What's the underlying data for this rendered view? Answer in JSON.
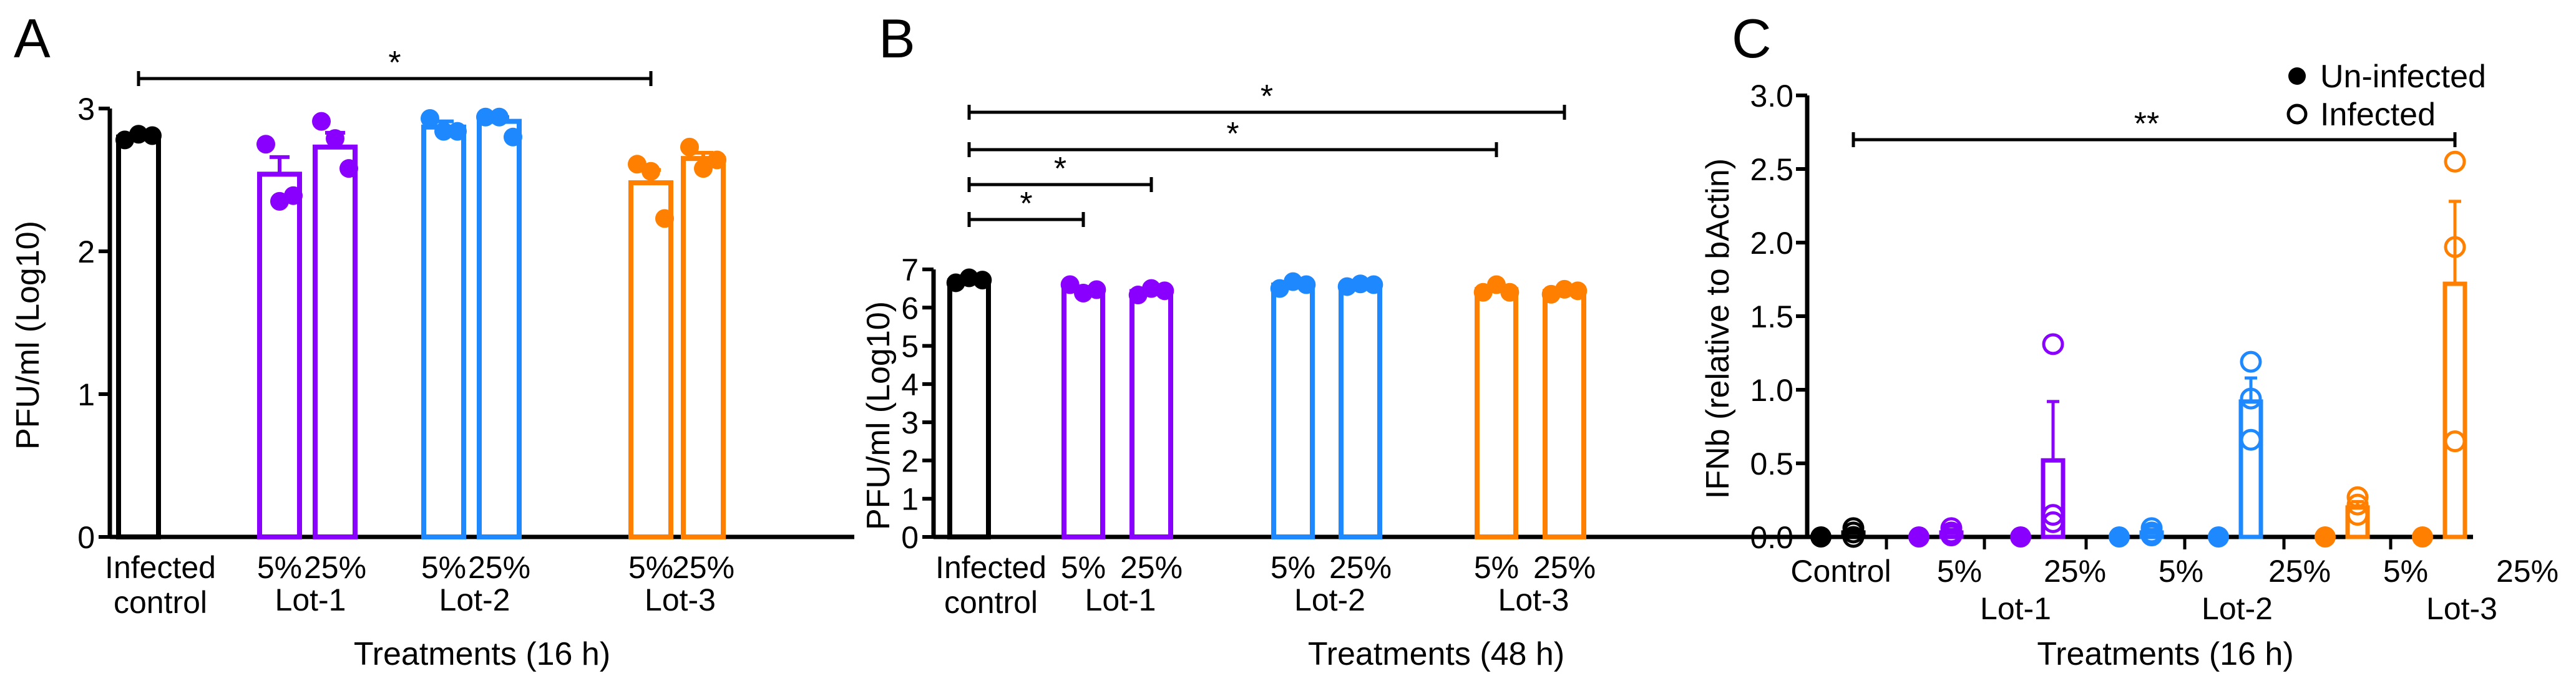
{
  "colors": {
    "control": "#000000",
    "lot1": "#8A00FF",
    "lot2": "#1E88FF",
    "lot3": "#FF8000"
  },
  "chart_data": [
    {
      "panel": "A",
      "type": "bar",
      "title": "",
      "xlabel": "Treatments (16 h)",
      "ylabel": "PFU/ml (Log10)",
      "ylim": [
        0,
        3
      ],
      "yticks": [
        "0",
        "1",
        "2",
        "3"
      ],
      "groups": [
        {
          "label_lines": [
            "Infected",
            "control"
          ],
          "bars": [
            {
              "tick": "",
              "color_key": "control",
              "mean": 2.8,
              "sem": 0.01,
              "points": [
                2.78,
                2.82,
                2.81
              ]
            }
          ]
        },
        {
          "label_lines": [
            "Lot-1"
          ],
          "bars": [
            {
              "tick": "5%",
              "color_key": "lot1",
              "mean": 2.54,
              "sem": 0.12,
              "points": [
                2.75,
                2.35,
                2.39
              ]
            },
            {
              "tick": "25%",
              "color_key": "lot1",
              "mean": 2.73,
              "sem": 0.1,
              "points": [
                2.91,
                2.79,
                2.58
              ]
            }
          ]
        },
        {
          "label_lines": [
            "Lot-2"
          ],
          "bars": [
            {
              "tick": "5%",
              "color_key": "lot2",
              "mean": 2.87,
              "sem": 0.04,
              "points": [
                2.93,
                2.84,
                2.84
              ]
            },
            {
              "tick": "25%",
              "color_key": "lot2",
              "mean": 2.91,
              "sem": 0.03,
              "points": [
                2.94,
                2.94,
                2.8
              ]
            }
          ]
        },
        {
          "label_lines": [
            "Lot-3"
          ],
          "bars": [
            {
              "tick": "5%",
              "color_key": "lot3",
              "mean": 2.48,
              "sem": 0.09,
              "points": [
                2.61,
                2.56,
                2.23
              ]
            },
            {
              "tick": "25%",
              "color_key": "lot3",
              "mean": 2.65,
              "sem": 0.04,
              "points": [
                2.73,
                2.58,
                2.64
              ]
            }
          ]
        }
      ],
      "significance": [
        {
          "from": "Infected control",
          "to": "Lot-3 5%",
          "label": "*"
        }
      ]
    },
    {
      "panel": "B",
      "type": "bar",
      "xlabel": "Treatments (48 h)",
      "ylabel": "PFU/ml (Log10)",
      "ylim": [
        0,
        7
      ],
      "yticks": [
        "0",
        "1",
        "2",
        "3",
        "4",
        "5",
        "6",
        "7"
      ],
      "groups": [
        {
          "label_lines": [
            "Infected",
            "control"
          ],
          "bars": [
            {
              "tick": "",
              "color_key": "control",
              "mean": 6.7,
              "sem": 0.04,
              "points": [
                6.65,
                6.78,
                6.72
              ]
            }
          ]
        },
        {
          "label_lines": [
            "Lot-1"
          ],
          "bars": [
            {
              "tick": "5%",
              "color_key": "lot1",
              "mean": 6.47,
              "sem": 0.07,
              "points": [
                6.6,
                6.38,
                6.47
              ]
            },
            {
              "tick": "25%",
              "color_key": "lot1",
              "mean": 6.42,
              "sem": 0.05,
              "points": [
                6.33,
                6.5,
                6.44
              ]
            }
          ]
        },
        {
          "label_lines": [
            "Lot-2"
          ],
          "bars": [
            {
              "tick": "5%",
              "color_key": "lot2",
              "mean": 6.59,
              "sem": 0.05,
              "points": [
                6.5,
                6.68,
                6.6
              ]
            },
            {
              "tick": "25%",
              "color_key": "lot2",
              "mean": 6.59,
              "sem": 0.02,
              "points": [
                6.55,
                6.62,
                6.6
              ]
            }
          ]
        },
        {
          "label_lines": [
            "Lot-3"
          ],
          "bars": [
            {
              "tick": "5%",
              "color_key": "lot3",
              "mean": 6.47,
              "sem": 0.07,
              "points": [
                6.4,
                6.6,
                6.4
              ]
            },
            {
              "tick": "25%",
              "color_key": "lot3",
              "mean": 6.42,
              "sem": 0.04,
              "points": [
                6.35,
                6.48,
                6.44
              ]
            }
          ]
        }
      ],
      "significance": [
        {
          "from": "Infected control",
          "to": "Lot-1 5%",
          "label": "*"
        },
        {
          "from": "Infected control",
          "to": "Lot-1 25%",
          "label": "*"
        },
        {
          "from": "Infected control",
          "to": "Lot-3 5%",
          "label": "*"
        },
        {
          "from": "Infected control",
          "to": "Lot-3 25%",
          "label": "*"
        }
      ]
    },
    {
      "panel": "C",
      "type": "bar",
      "xlabel": "Treatments (16 h)",
      "ylabel": "IFNb (relative to bActin)",
      "ylim": [
        0,
        3.0
      ],
      "yticks": [
        "0.0",
        "0.5",
        "1.0",
        "1.5",
        "2.0",
        "2.5",
        "3.0"
      ],
      "legend": {
        "position": "top-right",
        "entries": [
          {
            "label": "Un-infected",
            "marker": "filled"
          },
          {
            "label": "Infected",
            "marker": "open"
          }
        ]
      },
      "xtick_labels": [
        "Control",
        "5%",
        "25%",
        "5%",
        "25%",
        "5%",
        "25%"
      ],
      "group_labels": [
        "Lot-1",
        "Lot-2",
        "Lot-3"
      ],
      "conditions": [
        {
          "name": "Control",
          "color_key": "control",
          "uninfected": 0.0,
          "infected_mean": 0.03,
          "infected_sem": 0.02,
          "infected_points": [
            0.0,
            0.03,
            0.06
          ]
        },
        {
          "name": "Lot-1 5%",
          "color_key": "lot1",
          "uninfected": 0.0,
          "infected_mean": 0.03,
          "infected_sem": 0.02,
          "infected_points": [
            0.01,
            0.03,
            0.06
          ]
        },
        {
          "name": "Lot-1 25%",
          "color_key": "lot1",
          "uninfected": 0.0,
          "infected_mean": 0.52,
          "infected_sem": 0.4,
          "infected_points": [
            1.31,
            0.15,
            0.1
          ]
        },
        {
          "name": "Lot-2 5%",
          "color_key": "lot2",
          "uninfected": 0.0,
          "infected_mean": 0.03,
          "infected_sem": 0.02,
          "infected_points": [
            0.01,
            0.03,
            0.06
          ]
        },
        {
          "name": "Lot-2 25%",
          "color_key": "lot2",
          "uninfected": 0.0,
          "infected_mean": 0.92,
          "infected_sem": 0.16,
          "infected_points": [
            1.19,
            0.94,
            0.66
          ]
        },
        {
          "name": "Lot-3 5%",
          "color_key": "lot3",
          "uninfected": 0.0,
          "infected_mean": 0.2,
          "infected_sem": 0.04,
          "infected_points": [
            0.27,
            0.22,
            0.15
          ]
        },
        {
          "name": "Lot-3 25%",
          "color_key": "lot3",
          "uninfected": 0.0,
          "infected_mean": 1.72,
          "infected_sem": 0.56,
          "infected_points": [
            2.55,
            1.97,
            0.65
          ]
        }
      ],
      "significance": [
        {
          "from": "Control infected",
          "to": "Lot-3 25% infected",
          "label": "**"
        }
      ]
    }
  ]
}
